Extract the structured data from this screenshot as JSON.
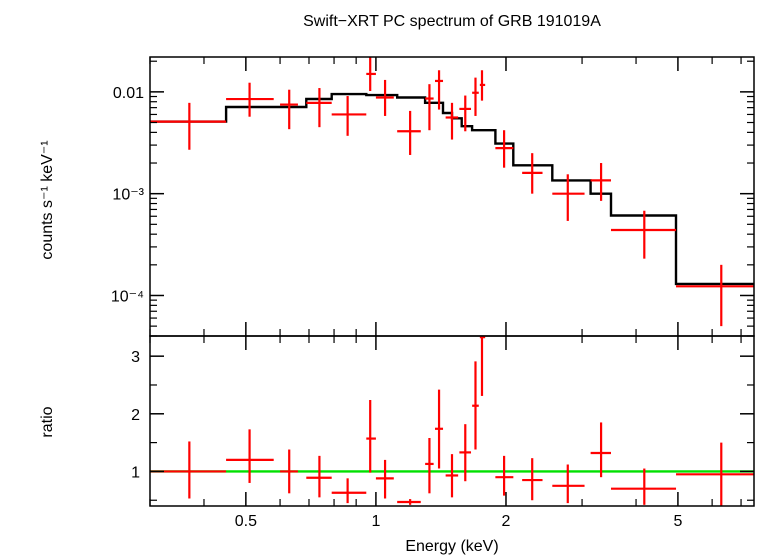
{
  "chart_data": [
    {
      "type": "scatter",
      "panel": "spectrum",
      "title": "Swift−XRT PC spectrum of GRB 191019A",
      "ylabel": "counts s⁻¹ keV⁻¹",
      "xlabel": "Energy (keV)",
      "xscale": "log",
      "yscale": "log",
      "xlim": [
        0.3,
        7.5
      ],
      "ylim": [
        4e-05,
        0.022
      ],
      "x_ticks": [
        "0.5",
        "1",
        "2",
        "5"
      ],
      "y_ticks": [
        {
          "value": 0.01,
          "label": "0.01"
        },
        {
          "value": 0.001,
          "label": "10⁻³"
        },
        {
          "value": 0.0001,
          "label": "10⁻⁴"
        }
      ],
      "colors": {
        "data": "#ff0000",
        "model": "#000000"
      },
      "series": [
        {
          "kind": "data",
          "points": [
            {
              "x": 0.37,
              "x_lo": 0.3,
              "x_hi": 0.45,
              "y": 0.0051,
              "y_lo": 0.0027,
              "y_hi": 0.0078
            },
            {
              "x": 0.51,
              "x_lo": 0.45,
              "x_hi": 0.58,
              "y": 0.0085,
              "y_lo": 0.0057,
              "y_hi": 0.0123
            },
            {
              "x": 0.63,
              "x_lo": 0.6,
              "x_hi": 0.66,
              "y": 0.0075,
              "y_lo": 0.0043,
              "y_hi": 0.0105
            },
            {
              "x": 0.74,
              "x_lo": 0.69,
              "x_hi": 0.79,
              "y": 0.0078,
              "y_lo": 0.0045,
              "y_hi": 0.0109
            },
            {
              "x": 0.86,
              "x_lo": 0.79,
              "x_hi": 0.95,
              "y": 0.006,
              "y_lo": 0.0037,
              "y_hi": 0.0091
            },
            {
              "x": 0.97,
              "x_lo": 0.95,
              "x_hi": 1.0,
              "y": 0.015,
              "y_lo": 0.0102,
              "y_hi": 0.0242
            },
            {
              "x": 1.05,
              "x_lo": 1.0,
              "x_hi": 1.1,
              "y": 0.0088,
              "y_lo": 0.0058,
              "y_hi": 0.0131
            },
            {
              "x": 1.2,
              "x_lo": 1.12,
              "x_hi": 1.27,
              "y": 0.0041,
              "y_lo": 0.0024,
              "y_hi": 0.0065
            },
            {
              "x": 1.33,
              "x_lo": 1.3,
              "x_hi": 1.36,
              "y": 0.0086,
              "y_lo": 0.0042,
              "y_hi": 0.0119
            },
            {
              "x": 1.4,
              "x_lo": 1.37,
              "x_hi": 1.43,
              "y": 0.0128,
              "y_lo": 0.0067,
              "y_hi": 0.0163
            },
            {
              "x": 1.5,
              "x_lo": 1.45,
              "x_hi": 1.55,
              "y": 0.0056,
              "y_lo": 0.0034,
              "y_hi": 0.0078
            },
            {
              "x": 1.61,
              "x_lo": 1.56,
              "x_hi": 1.66,
              "y": 0.0068,
              "y_lo": 0.0041,
              "y_hi": 0.0092
            },
            {
              "x": 1.7,
              "x_lo": 1.67,
              "x_hi": 1.73,
              "y": 0.0098,
              "y_lo": 0.0058,
              "y_hi": 0.0138
            },
            {
              "x": 1.76,
              "x_lo": 1.74,
              "x_hi": 1.79,
              "y": 0.0117,
              "y_lo": 0.0082,
              "y_hi": 0.0163
            },
            {
              "x": 1.98,
              "x_lo": 1.89,
              "x_hi": 2.08,
              "y": 0.0028,
              "y_lo": 0.0018,
              "y_hi": 0.0042
            },
            {
              "x": 2.3,
              "x_lo": 2.18,
              "x_hi": 2.43,
              "y": 0.0016,
              "y_lo": 0.001,
              "y_hi": 0.0025
            },
            {
              "x": 2.78,
              "x_lo": 2.56,
              "x_hi": 3.04,
              "y": 0.001,
              "y_lo": 0.00054,
              "y_hi": 0.00155
            },
            {
              "x": 3.32,
              "x_lo": 3.14,
              "x_hi": 3.5,
              "y": 0.00135,
              "y_lo": 0.00085,
              "y_hi": 0.002
            },
            {
              "x": 4.18,
              "x_lo": 3.5,
              "x_hi": 4.95,
              "y": 0.00044,
              "y_lo": 0.00023,
              "y_hi": 0.00068
            },
            {
              "x": 6.3,
              "x_lo": 4.95,
              "x_hi": 7.5,
              "y": 0.000123,
              "y_lo": 5e-05,
              "y_hi": 0.0002
            }
          ]
        },
        {
          "kind": "model",
          "steps": [
            {
              "x_lo": 0.3,
              "x_hi": 0.45,
              "y": 0.0051
            },
            {
              "x_lo": 0.45,
              "x_hi": 0.69,
              "y": 0.0071
            },
            {
              "x_lo": 0.69,
              "x_hi": 0.79,
              "y": 0.0085
            },
            {
              "x_lo": 0.79,
              "x_hi": 0.95,
              "y": 0.0095
            },
            {
              "x_lo": 0.95,
              "x_hi": 1.12,
              "y": 0.0093
            },
            {
              "x_lo": 1.12,
              "x_hi": 1.3,
              "y": 0.0088
            },
            {
              "x_lo": 1.3,
              "x_hi": 1.43,
              "y": 0.0078
            },
            {
              "x_lo": 1.43,
              "x_hi": 1.5,
              "y": 0.0062
            },
            {
              "x_lo": 1.5,
              "x_hi": 1.58,
              "y": 0.0055
            },
            {
              "x_lo": 1.58,
              "x_hi": 1.67,
              "y": 0.0046
            },
            {
              "x_lo": 1.67,
              "x_hi": 1.89,
              "y": 0.0042
            },
            {
              "x_lo": 1.89,
              "x_hi": 2.08,
              "y": 0.0031
            },
            {
              "x_lo": 2.08,
              "x_hi": 2.56,
              "y": 0.0019
            },
            {
              "x_lo": 2.56,
              "x_hi": 3.14,
              "y": 0.00135
            },
            {
              "x_lo": 3.14,
              "x_hi": 3.5,
              "y": 0.001
            },
            {
              "x_lo": 3.5,
              "x_hi": 4.95,
              "y": 0.00061
            },
            {
              "x_lo": 4.95,
              "x_hi": 7.5,
              "y": 0.00013
            }
          ]
        }
      ]
    },
    {
      "type": "scatter",
      "panel": "ratio",
      "ylabel": "ratio",
      "xlabel": "Energy (keV)",
      "xscale": "log",
      "xlim": [
        0.3,
        7.5
      ],
      "ylim": [
        0.4,
        3.35
      ],
      "x_ticks": [
        "0.5",
        "1",
        "2",
        "5"
      ],
      "y_ticks": [
        "1",
        "2",
        "3"
      ],
      "reference_line": {
        "y": 1,
        "color": "#00e000"
      },
      "colors": {
        "data": "#ff0000"
      },
      "series": [
        {
          "kind": "data",
          "points": [
            {
              "x": 0.37,
              "x_lo": 0.3,
              "x_hi": 0.45,
              "y": 1.0,
              "y_lo": 0.53,
              "y_hi": 1.52
            },
            {
              "x": 0.51,
              "x_lo": 0.45,
              "x_hi": 0.58,
              "y": 1.2,
              "y_lo": 0.8,
              "y_hi": 1.73
            },
            {
              "x": 0.63,
              "x_lo": 0.6,
              "x_hi": 0.66,
              "y": 1.0,
              "y_lo": 0.62,
              "y_hi": 1.38
            },
            {
              "x": 0.74,
              "x_lo": 0.69,
              "x_hi": 0.79,
              "y": 0.89,
              "y_lo": 0.55,
              "y_hi": 1.27
            },
            {
              "x": 0.86,
              "x_lo": 0.79,
              "x_hi": 0.95,
              "y": 0.63,
              "y_lo": 0.45,
              "y_hi": 0.88
            },
            {
              "x": 0.97,
              "x_lo": 0.95,
              "x_hi": 1.0,
              "y": 1.57,
              "y_lo": 0.98,
              "y_hi": 2.24
            },
            {
              "x": 1.05,
              "x_lo": 1.0,
              "x_hi": 1.1,
              "y": 0.88,
              "y_lo": 0.53,
              "y_hi": 1.2
            },
            {
              "x": 1.2,
              "x_lo": 1.12,
              "x_hi": 1.27,
              "y": 0.47,
              "y_lo": 0.42,
              "y_hi": 0.52
            },
            {
              "x": 1.33,
              "x_lo": 1.3,
              "x_hi": 1.36,
              "y": 1.13,
              "y_lo": 0.62,
              "y_hi": 1.58
            },
            {
              "x": 1.4,
              "x_lo": 1.37,
              "x_hi": 1.43,
              "y": 1.74,
              "y_lo": 1.05,
              "y_hi": 2.42
            },
            {
              "x": 1.5,
              "x_lo": 1.45,
              "x_hi": 1.55,
              "y": 0.93,
              "y_lo": 0.55,
              "y_hi": 1.3
            },
            {
              "x": 1.61,
              "x_lo": 1.56,
              "x_hi": 1.66,
              "y": 1.33,
              "y_lo": 0.83,
              "y_hi": 1.82
            },
            {
              "x": 1.7,
              "x_lo": 1.67,
              "x_hi": 1.73,
              "y": 2.14,
              "y_lo": 1.38,
              "y_hi": 2.91
            },
            {
              "x": 1.76,
              "x_lo": 1.74,
              "x_hi": 1.79,
              "y": 3.33,
              "y_lo": 2.31,
              "y_hi": 3.35
            },
            {
              "x": 1.98,
              "x_lo": 1.89,
              "x_hi": 2.08,
              "y": 0.9,
              "y_lo": 0.58,
              "y_hi": 1.27
            },
            {
              "x": 2.3,
              "x_lo": 2.18,
              "x_hi": 2.43,
              "y": 0.85,
              "y_lo": 0.5,
              "y_hi": 1.23
            },
            {
              "x": 2.78,
              "x_lo": 2.56,
              "x_hi": 3.04,
              "y": 0.75,
              "y_lo": 0.45,
              "y_hi": 1.12
            },
            {
              "x": 3.32,
              "x_lo": 3.14,
              "x_hi": 3.5,
              "y": 1.32,
              "y_lo": 0.9,
              "y_hi": 1.85
            },
            {
              "x": 4.18,
              "x_lo": 3.5,
              "x_hi": 4.95,
              "y": 0.7,
              "y_lo": 0.42,
              "y_hi": 1.05
            },
            {
              "x": 6.3,
              "x_lo": 4.95,
              "x_hi": 7.5,
              "y": 0.95,
              "y_lo": 0.4,
              "y_hi": 1.5
            }
          ]
        }
      ]
    }
  ]
}
